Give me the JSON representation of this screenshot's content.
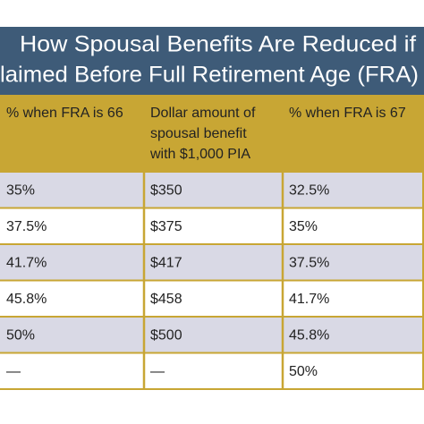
{
  "title": [
    "How Spousal Benefits Are Reduced if",
    "laimed Before Full Retirement Age (FRA)"
  ],
  "table": {
    "header": [
      [
        "% when FRA is 66"
      ],
      [
        "Dollar amount of",
        "spousal benefit",
        "with $1,000 PIA"
      ],
      [
        "% when FRA is 67"
      ]
    ],
    "rows": [
      [
        "35%",
        "$350",
        "32.5%"
      ],
      [
        "37.5%",
        "$375",
        "35%"
      ],
      [
        "41.7%",
        "$417",
        "37.5%"
      ],
      [
        "45.8%",
        "$458",
        "41.7%"
      ],
      [
        "50%",
        "$500",
        "45.8%"
      ],
      [
        "—",
        "—",
        "50%"
      ]
    ]
  }
}
